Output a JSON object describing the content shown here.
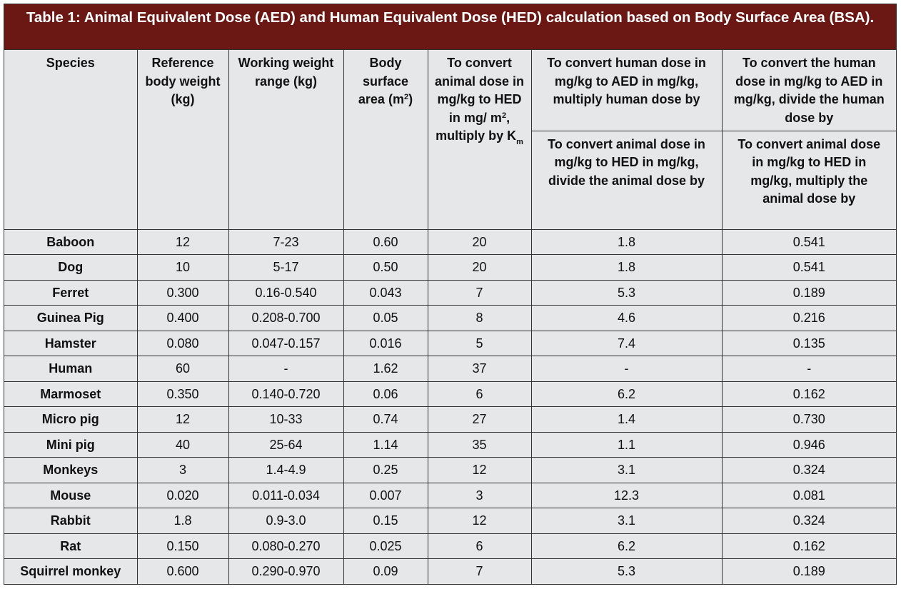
{
  "title": "Table 1: Animal Equivalent Dose (AED) and Human Equivalent Dose (HED) calculation based on Body Surface Area (BSA).",
  "headers": {
    "species": "Species",
    "ref_weight": "Reference body weight (kg)",
    "working_range": "Working weight range (kg)",
    "bsa_pre": "Body surface area (m",
    "bsa_sup": "2",
    "bsa_post": ")",
    "km_pre": "To convert animal dose in mg/kg to HED in mg/ m",
    "km_sup": "2",
    "km_mid": ", multiply by K",
    "km_sub": "m",
    "aed_multiply": "To convert human dose in mg/kg to AED in mg/kg, multiply human dose by",
    "aed_divide": "To convert the human dose in mg/kg to AED in mg/kg, divide the human dose by",
    "hed_divide": "To convert animal dose in mg/kg to HED in mg/kg, divide the animal dose by",
    "hed_multiply_1": "To convert animal dose",
    "hed_multiply_2": "in mg/kg to HED in mg/kg, multiply the animal dose by"
  },
  "rows": [
    {
      "species": "Baboon",
      "ref": "12",
      "range": "7-23",
      "bsa": "0.60",
      "km": "20",
      "a": "1.8",
      "b": "0.541"
    },
    {
      "species": "Dog",
      "ref": "10",
      "range": "5-17",
      "bsa": "0.50",
      "km": "20",
      "a": "1.8",
      "b": "0.541"
    },
    {
      "species": "Ferret",
      "ref": "0.300",
      "range": "0.16-0.540",
      "bsa": "0.043",
      "km": "7",
      "a": "5.3",
      "b": "0.189"
    },
    {
      "species": "Guinea Pig",
      "ref": "0.400",
      "range": "0.208-0.700",
      "bsa": "0.05",
      "km": "8",
      "a": "4.6",
      "b": "0.216"
    },
    {
      "species": "Hamster",
      "ref": "0.080",
      "range": "0.047-0.157",
      "bsa": "0.016",
      "km": "5",
      "a": "7.4",
      "b": "0.135"
    },
    {
      "species": "Human",
      "ref": "60",
      "range": "-",
      "bsa": "1.62",
      "km": "37",
      "a": "-",
      "b": "-"
    },
    {
      "species": "Marmoset",
      "ref": "0.350",
      "range": "0.140-0.720",
      "bsa": "0.06",
      "km": "6",
      "a": "6.2",
      "b": "0.162"
    },
    {
      "species": "Micro pig",
      "ref": "12",
      "range": "10-33",
      "bsa": "0.74",
      "km": "27",
      "a": "1.4",
      "b": "0.730"
    },
    {
      "species": "Mini pig",
      "ref": "40",
      "range": "25-64",
      "bsa": "1.14",
      "km": "35",
      "a": "1.1",
      "b": "0.946"
    },
    {
      "species": "Monkeys",
      "ref": "3",
      "range": "1.4-4.9",
      "bsa": "0.25",
      "km": "12",
      "a": "3.1",
      "b": "0.324"
    },
    {
      "species": "Mouse",
      "ref": "0.020",
      "range": "0.011-0.034",
      "bsa": "0.007",
      "km": "3",
      "a": "12.3",
      "b": "0.081"
    },
    {
      "species": "Rabbit",
      "ref": "1.8",
      "range": "0.9-3.0",
      "bsa": "0.15",
      "km": "12",
      "a": "3.1",
      "b": "0.324"
    },
    {
      "species": "Rat",
      "ref": "0.150",
      "range": "0.080-0.270",
      "bsa": "0.025",
      "km": "6",
      "a": "6.2",
      "b": "0.162"
    },
    {
      "species": "Squirrel monkey",
      "ref": "0.600",
      "range": "0.290-0.970",
      "bsa": "0.09",
      "km": "7",
      "a": "5.3",
      "b": "0.189"
    }
  ]
}
